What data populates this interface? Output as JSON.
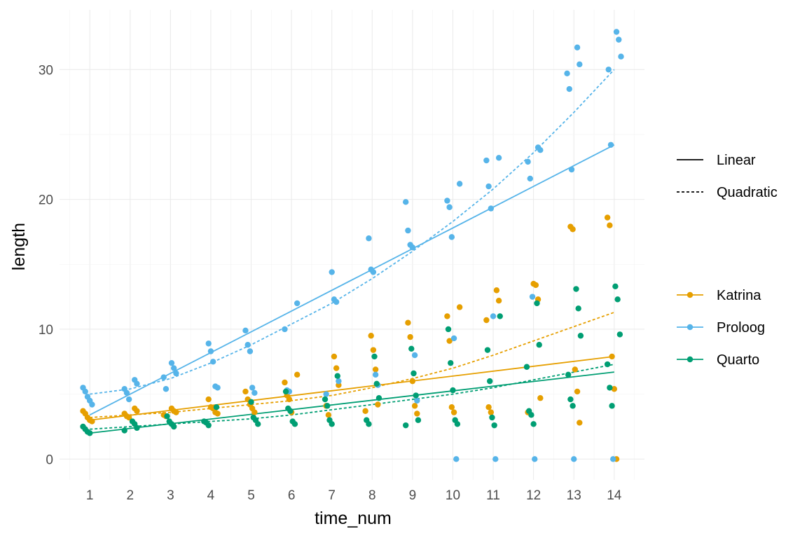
{
  "chart_data": {
    "type": "scatter",
    "xlabel": "time_num",
    "ylabel": "length",
    "xlim": [
      0.25,
      14.75
    ],
    "ylim": [
      -1.6,
      34.6
    ],
    "x_ticks": [
      "1",
      "2",
      "3",
      "4",
      "5",
      "6",
      "7",
      "8",
      "9",
      "10",
      "11",
      "12",
      "13",
      "14"
    ],
    "y_ticks": [
      "0",
      "10",
      "20",
      "30"
    ],
    "x_tick_values": [
      1,
      2,
      3,
      4,
      5,
      6,
      7,
      8,
      9,
      10,
      11,
      12,
      13,
      14
    ],
    "y_tick_values": [
      0,
      10,
      20,
      30
    ],
    "grid": true,
    "legend_position": "right",
    "linetype_legend": [
      {
        "label": "Linear",
        "dash": "solid"
      },
      {
        "label": "Quadratic",
        "dash": "dotted"
      }
    ],
    "series": [
      {
        "name": "Katrina",
        "color": "#E69F00",
        "points": [
          [
            1,
            3.7
          ],
          [
            1,
            3.5
          ],
          [
            1,
            3.2
          ],
          [
            1,
            3.0
          ],
          [
            1,
            2.9
          ],
          [
            2,
            3.9
          ],
          [
            2,
            3.7
          ],
          [
            2,
            3.5
          ],
          [
            2,
            3.3
          ],
          [
            2,
            3.2
          ],
          [
            3,
            3.9
          ],
          [
            3,
            3.7
          ],
          [
            3,
            3.6
          ],
          [
            3,
            3.4
          ],
          [
            3,
            3.3
          ],
          [
            4,
            4.6
          ],
          [
            4,
            4.0
          ],
          [
            4,
            3.9
          ],
          [
            4,
            3.6
          ],
          [
            4,
            3.5
          ],
          [
            5,
            5.2
          ],
          [
            5,
            4.6
          ],
          [
            5,
            4.2
          ],
          [
            5,
            3.9
          ],
          [
            5,
            3.6
          ],
          [
            6,
            6.5
          ],
          [
            6,
            5.9
          ],
          [
            6,
            4.9
          ],
          [
            6,
            4.6
          ],
          [
            6,
            3.6
          ],
          [
            7,
            7.9
          ],
          [
            7,
            7.0
          ],
          [
            7,
            5.7
          ],
          [
            7,
            4.1
          ],
          [
            7,
            3.4
          ],
          [
            8,
            9.5
          ],
          [
            8,
            8.4
          ],
          [
            8,
            6.9
          ],
          [
            8,
            4.2
          ],
          [
            8,
            3.7
          ],
          [
            9,
            10.5
          ],
          [
            9,
            9.4
          ],
          [
            9,
            6.0
          ],
          [
            9,
            4.1
          ],
          [
            9,
            3.5
          ],
          [
            10,
            11.7
          ],
          [
            10,
            11.0
          ],
          [
            10,
            9.1
          ],
          [
            10,
            4.0
          ],
          [
            10,
            3.6
          ],
          [
            11,
            13.0
          ],
          [
            11,
            12.2
          ],
          [
            11,
            10.7
          ],
          [
            11,
            4.0
          ],
          [
            11,
            3.6
          ],
          [
            12,
            13.5
          ],
          [
            12,
            13.4
          ],
          [
            12,
            12.3
          ],
          [
            12,
            4.7
          ],
          [
            12,
            3.6
          ],
          [
            13,
            17.9
          ],
          [
            13,
            17.7
          ],
          [
            13,
            6.9
          ],
          [
            13,
            5.2
          ],
          [
            13,
            2.8
          ],
          [
            14,
            18.6
          ],
          [
            14,
            18.0
          ],
          [
            14,
            7.9
          ],
          [
            14,
            5.4
          ],
          [
            14,
            0.0
          ]
        ],
        "linear_fit": {
          "x": [
            1,
            14
          ],
          "y": [
            3.0,
            7.9
          ]
        },
        "quadratic_fit": {
          "x": [
            1,
            2,
            3,
            4,
            5,
            6,
            7,
            8,
            9,
            10,
            11,
            12,
            13,
            14
          ],
          "y": [
            3.2,
            3.4,
            3.6,
            3.9,
            4.2,
            4.5,
            4.9,
            5.5,
            6.2,
            7.0,
            8.0,
            9.1,
            10.2,
            11.3
          ]
        }
      },
      {
        "name": "Proloog",
        "color": "#56B4E9",
        "points": [
          [
            1,
            5.5
          ],
          [
            1,
            5.2
          ],
          [
            1,
            4.8
          ],
          [
            1,
            4.5
          ],
          [
            1,
            4.2
          ],
          [
            2,
            6.1
          ],
          [
            2,
            5.8
          ],
          [
            2,
            5.4
          ],
          [
            2,
            5.1
          ],
          [
            2,
            4.6
          ],
          [
            3,
            7.4
          ],
          [
            3,
            7.0
          ],
          [
            3,
            6.6
          ],
          [
            3,
            6.3
          ],
          [
            3,
            5.4
          ],
          [
            4,
            8.9
          ],
          [
            4,
            8.3
          ],
          [
            4,
            7.5
          ],
          [
            4,
            5.6
          ],
          [
            4,
            5.5
          ],
          [
            5,
            9.9
          ],
          [
            5,
            8.8
          ],
          [
            5,
            8.3
          ],
          [
            5,
            5.5
          ],
          [
            5,
            5.1
          ],
          [
            6,
            12.0
          ],
          [
            6,
            10.0
          ],
          [
            6,
            5.3
          ],
          [
            6,
            5.2
          ],
          [
            7,
            14.4
          ],
          [
            7,
            12.3
          ],
          [
            7,
            12.1
          ],
          [
            7,
            6.0
          ],
          [
            7,
            5.0
          ],
          [
            8,
            17.0
          ],
          [
            8,
            14.6
          ],
          [
            8,
            14.4
          ],
          [
            8,
            6.5
          ],
          [
            8,
            5.7
          ],
          [
            9,
            19.8
          ],
          [
            9,
            17.6
          ],
          [
            9,
            16.5
          ],
          [
            9,
            16.3
          ],
          [
            9,
            8.0
          ],
          [
            9,
            4.5
          ],
          [
            10,
            21.2
          ],
          [
            10,
            19.9
          ],
          [
            10,
            19.4
          ],
          [
            10,
            17.1
          ],
          [
            10,
            9.3
          ],
          [
            10,
            0.0
          ],
          [
            11,
            23.2
          ],
          [
            11,
            23.0
          ],
          [
            11,
            21.0
          ],
          [
            11,
            19.3
          ],
          [
            11,
            11.0
          ],
          [
            11,
            0.0
          ],
          [
            12,
            24.0
          ],
          [
            12,
            23.8
          ],
          [
            12,
            22.9
          ],
          [
            12,
            21.6
          ],
          [
            12,
            12.5
          ],
          [
            12,
            0.0
          ],
          [
            13,
            31.7
          ],
          [
            13,
            30.4
          ],
          [
            13,
            29.7
          ],
          [
            13,
            28.5
          ],
          [
            13,
            22.3
          ],
          [
            13,
            0.0
          ],
          [
            14,
            32.9
          ],
          [
            14,
            32.3
          ],
          [
            14,
            31.0
          ],
          [
            14,
            30.0
          ],
          [
            14,
            24.2
          ],
          [
            14,
            0.0
          ]
        ],
        "linear_fit": {
          "x": [
            1,
            14
          ],
          "y": [
            3.4,
            24.2
          ]
        },
        "quadratic_fit": {
          "x": [
            1,
            2,
            3,
            4,
            5,
            6,
            7,
            8,
            9,
            10,
            11,
            12,
            13,
            14
          ],
          "y": [
            5.0,
            5.4,
            6.2,
            7.4,
            8.8,
            10.4,
            12.0,
            13.9,
            16.0,
            18.3,
            20.8,
            23.6,
            26.7,
            30.0
          ]
        }
      },
      {
        "name": "Quarto",
        "color": "#009E73",
        "points": [
          [
            1,
            2.5
          ],
          [
            1,
            2.3
          ],
          [
            1,
            2.1
          ],
          [
            1,
            2.0
          ],
          [
            2,
            2.9
          ],
          [
            2,
            2.7
          ],
          [
            2,
            2.4
          ],
          [
            2,
            2.2
          ],
          [
            3,
            3.3
          ],
          [
            3,
            2.9
          ],
          [
            3,
            2.7
          ],
          [
            3,
            2.5
          ],
          [
            4,
            4.0
          ],
          [
            4,
            2.9
          ],
          [
            4,
            2.8
          ],
          [
            4,
            2.6
          ],
          [
            5,
            4.4
          ],
          [
            5,
            3.2
          ],
          [
            5,
            3.0
          ],
          [
            5,
            2.7
          ],
          [
            6,
            5.2
          ],
          [
            6,
            3.9
          ],
          [
            6,
            3.7
          ],
          [
            6,
            2.9
          ],
          [
            6,
            2.7
          ],
          [
            7,
            6.4
          ],
          [
            7,
            4.6
          ],
          [
            7,
            4.1
          ],
          [
            7,
            3.0
          ],
          [
            7,
            2.7
          ],
          [
            8,
            7.9
          ],
          [
            8,
            5.8
          ],
          [
            8,
            4.7
          ],
          [
            8,
            3.0
          ],
          [
            8,
            2.7
          ],
          [
            9,
            8.5
          ],
          [
            9,
            6.6
          ],
          [
            9,
            4.9
          ],
          [
            9,
            3.0
          ],
          [
            9,
            2.6
          ],
          [
            10,
            10.0
          ],
          [
            10,
            7.4
          ],
          [
            10,
            5.3
          ],
          [
            10,
            3.0
          ],
          [
            10,
            2.7
          ],
          [
            11,
            11.0
          ],
          [
            11,
            8.4
          ],
          [
            11,
            6.0
          ],
          [
            11,
            3.2
          ],
          [
            11,
            2.6
          ],
          [
            12,
            12.0
          ],
          [
            12,
            8.8
          ],
          [
            12,
            7.1
          ],
          [
            12,
            3.7
          ],
          [
            12,
            3.4
          ],
          [
            12,
            2.7
          ],
          [
            13,
            13.1
          ],
          [
            13,
            11.6
          ],
          [
            13,
            9.5
          ],
          [
            13,
            6.5
          ],
          [
            13,
            4.6
          ],
          [
            13,
            4.1
          ],
          [
            14,
            13.3
          ],
          [
            14,
            12.3
          ],
          [
            14,
            9.6
          ],
          [
            14,
            7.3
          ],
          [
            14,
            5.5
          ],
          [
            14,
            4.1
          ]
        ],
        "linear_fit": {
          "x": [
            1,
            14
          ],
          "y": [
            2.0,
            6.7
          ]
        },
        "quadratic_fit": {
          "x": [
            1,
            2,
            3,
            4,
            5,
            6,
            7,
            8,
            9,
            10,
            11,
            12,
            13,
            14
          ],
          "y": [
            2.3,
            2.5,
            2.7,
            2.9,
            3.1,
            3.4,
            3.8,
            4.2,
            4.6,
            5.0,
            5.5,
            6.1,
            6.7,
            7.3
          ]
        }
      }
    ]
  }
}
